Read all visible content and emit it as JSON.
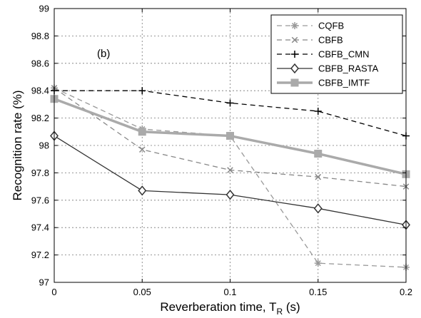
{
  "chart_data": {
    "type": "line",
    "title": "",
    "annotation": "(b)",
    "xlabel": "Reverberation time, T",
    "xlabel_subscript": "R",
    "xlabel_suffix": " (s)",
    "ylabel": "Recognition rate (%)",
    "x": [
      0,
      0.05,
      0.1,
      0.15,
      0.2
    ],
    "xlim": [
      0,
      0.2
    ],
    "ylim": [
      97,
      99
    ],
    "xticks": [
      "0",
      "0.05",
      "0.1",
      "0.15",
      "0.2"
    ],
    "yticks": [
      "97",
      "97.2",
      "97.4",
      "97.6",
      "97.8",
      "98",
      "98.2",
      "98.4",
      "98.6",
      "98.8",
      "99"
    ],
    "legend_position": "top-right",
    "series": [
      {
        "name": "CQFB",
        "values": [
          98.42,
          98.12,
          98.07,
          97.14,
          97.11
        ],
        "color": "#999999",
        "dash": "dashed",
        "marker": "asterisk"
      },
      {
        "name": "CBFB",
        "values": [
          98.42,
          97.97,
          97.82,
          97.77,
          97.7
        ],
        "color": "#888888",
        "dash": "dashed",
        "marker": "x"
      },
      {
        "name": "CBFB_CMN",
        "values": [
          98.4,
          98.4,
          98.31,
          98.25,
          98.07
        ],
        "color": "#000000",
        "dash": "dashed",
        "marker": "plus"
      },
      {
        "name": "CBFB_RASTA",
        "values": [
          98.07,
          97.67,
          97.64,
          97.54,
          97.42
        ],
        "color": "#333333",
        "dash": "solid",
        "marker": "diamond"
      },
      {
        "name": "CBFB_IMTF",
        "values": [
          98.34,
          98.1,
          98.07,
          97.94,
          97.79
        ],
        "color": "#aaaaaa",
        "dash": "solid-thick",
        "marker": "square"
      }
    ]
  }
}
